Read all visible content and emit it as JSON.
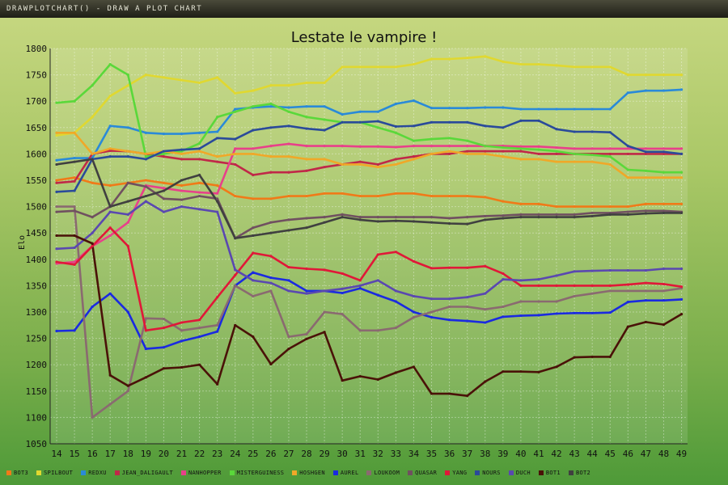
{
  "window": {
    "title": "drawPlotChart() - Draw a plot chart"
  },
  "chart_data": {
    "type": "line",
    "title": "Lestate le vampire !",
    "ylabel": "Elo",
    "xlabel": "",
    "ylim": [
      1050,
      1800
    ],
    "yticks": [
      1050,
      1100,
      1150,
      1200,
      1250,
      1300,
      1350,
      1400,
      1450,
      1500,
      1550,
      1600,
      1650,
      1700,
      1750,
      1800
    ],
    "x": [
      14,
      15,
      16,
      17,
      18,
      19,
      20,
      21,
      22,
      23,
      24,
      25,
      26,
      27,
      28,
      29,
      30,
      31,
      32,
      33,
      34,
      35,
      36,
      37,
      38,
      39,
      40,
      41,
      42,
      43,
      44,
      45,
      46,
      47,
      48,
      49
    ],
    "grid": true,
    "legend_position": "bottom",
    "series": [
      {
        "name": "BOT3",
        "color": "#f07a18",
        "values": [
          1550,
          1555,
          1545,
          1540,
          1545,
          1550,
          1545,
          1540,
          1545,
          1540,
          1520,
          1515,
          1515,
          1520,
          1520,
          1525,
          1525,
          1520,
          1520,
          1525,
          1525,
          1520,
          1520,
          1520,
          1518,
          1510,
          1505,
          1505,
          1500,
          1500,
          1500,
          1500,
          1500,
          1505,
          1505,
          1505
        ]
      },
      {
        "name": "SPILBOUT",
        "color": "#e0d830",
        "values": [
          1635,
          1640,
          1670,
          1710,
          1730,
          1750,
          1745,
          1740,
          1735,
          1745,
          1715,
          1720,
          1730,
          1730,
          1735,
          1735,
          1765,
          1765,
          1765,
          1765,
          1770,
          1780,
          1780,
          1782,
          1785,
          1775,
          1770,
          1770,
          1768,
          1765,
          1765,
          1765,
          1750,
          1750,
          1750,
          1750
        ]
      },
      {
        "name": "REDXU",
        "color": "#2a8ad8",
        "values": [
          1588,
          1592,
          1592,
          1653,
          1650,
          1640,
          1638,
          1638,
          1640,
          1642,
          1685,
          1688,
          1690,
          1688,
          1690,
          1690,
          1675,
          1680,
          1680,
          1695,
          1701,
          1687,
          1687,
          1687,
          1688,
          1688,
          1685,
          1685,
          1685,
          1685,
          1685,
          1685,
          1716,
          1720,
          1720,
          1722
        ]
      },
      {
        "name": "JEAN_DALIGAULT",
        "color": "#c02848",
        "values": [
          1545,
          1548,
          1600,
          1606,
          1605,
          1600,
          1595,
          1590,
          1590,
          1585,
          1580,
          1560,
          1565,
          1565,
          1568,
          1575,
          1580,
          1585,
          1580,
          1590,
          1595,
          1600,
          1600,
          1605,
          1605,
          1605,
          1605,
          1600,
          1600,
          1600,
          1600,
          1600,
          1600,
          1600,
          1600,
          1600
        ]
      },
      {
        "name": "NANHOPPER",
        "color": "#e8408a",
        "values": [
          1392,
          1395,
          1425,
          1445,
          1470,
          1540,
          1535,
          1530,
          1527,
          1525,
          1610,
          1610,
          1615,
          1619,
          1615,
          1615,
          1615,
          1614,
          1614,
          1613,
          1615,
          1615,
          1615,
          1615,
          1615,
          1615,
          1614,
          1614,
          1612,
          1610,
          1610,
          1610,
          1610,
          1610,
          1610,
          1610
        ]
      },
      {
        "name": "MISTERGUINESS",
        "color": "#5ad83a",
        "values": [
          1697,
          1700,
          1730,
          1770,
          1750,
          1595,
          1600,
          1605,
          1620,
          1670,
          1680,
          1690,
          1695,
          1680,
          1670,
          1665,
          1660,
          1660,
          1650,
          1640,
          1625,
          1628,
          1630,
          1625,
          1615,
          1612,
          1610,
          1608,
          1605,
          1600,
          1598,
          1595,
          1570,
          1568,
          1565,
          1565
        ]
      },
      {
        "name": "HOSHGEN",
        "color": "#f0a828",
        "values": [
          1640,
          1640,
          1600,
          1610,
          1605,
          1600,
          1605,
          1600,
          1605,
          1595,
          1600,
          1600,
          1595,
          1595,
          1590,
          1590,
          1580,
          1580,
          1575,
          1580,
          1590,
          1600,
          1605,
          1600,
          1600,
          1595,
          1590,
          1590,
          1585,
          1585,
          1585,
          1580,
          1555,
          1555,
          1555,
          1555
        ]
      },
      {
        "name": "AUREL",
        "color": "#1a2ae0",
        "values": [
          1264,
          1265,
          1310,
          1335,
          1300,
          1230,
          1233,
          1245,
          1253,
          1263,
          1350,
          1375,
          1365,
          1360,
          1340,
          1340,
          1336,
          1345,
          1332,
          1320,
          1300,
          1290,
          1285,
          1283,
          1280,
          1291,
          1293,
          1294,
          1297,
          1298,
          1298,
          1299,
          1319,
          1322,
          1322,
          1324
        ]
      },
      {
        "name": "LOUKOOM",
        "color": "#8a6a70",
        "values": [
          1500,
          1500,
          1100,
          1125,
          1150,
          1288,
          1287,
          1265,
          1270,
          1275,
          1350,
          1330,
          1340,
          1253,
          1258,
          1300,
          1296,
          1265,
          1265,
          1270,
          1290,
          1300,
          1310,
          1310,
          1305,
          1310,
          1320,
          1320,
          1320,
          1330,
          1335,
          1340,
          1340,
          1340,
          1340,
          1345
        ]
      },
      {
        "name": "QUASAR",
        "color": "#705060",
        "values": [
          1490,
          1492,
          1480,
          1500,
          1545,
          1538,
          1515,
          1513,
          1520,
          1515,
          1440,
          1460,
          1470,
          1475,
          1478,
          1480,
          1485,
          1480,
          1480,
          1480,
          1480,
          1480,
          1478,
          1480,
          1482,
          1483,
          1485,
          1485,
          1485,
          1485,
          1488,
          1488,
          1490,
          1492,
          1492,
          1490
        ]
      },
      {
        "name": "YANG",
        "color": "#e01838",
        "values": [
          1395,
          1390,
          1425,
          1460,
          1425,
          1265,
          1270,
          1280,
          1285,
          1328,
          1370,
          1412,
          1406,
          1385,
          1382,
          1380,
          1373,
          1360,
          1409,
          1414,
          1396,
          1383,
          1384,
          1384,
          1387,
          1373,
          1350,
          1350,
          1350,
          1350,
          1350,
          1350,
          1352,
          1355,
          1353,
          1348
        ]
      },
      {
        "name": "NOURS",
        "color": "#2a4a9a",
        "values": [
          1528,
          1530,
          1590,
          1595,
          1595,
          1590,
          1605,
          1608,
          1610,
          1630,
          1628,
          1645,
          1650,
          1653,
          1648,
          1645,
          1660,
          1660,
          1662,
          1652,
          1653,
          1660,
          1660,
          1660,
          1653,
          1650,
          1663,
          1663,
          1647,
          1642,
          1642,
          1641,
          1615,
          1604,
          1604,
          1600
        ]
      },
      {
        "name": "DUCH",
        "color": "#5a48b0",
        "values": [
          1420,
          1422,
          1450,
          1490,
          1485,
          1510,
          1490,
          1500,
          1495,
          1490,
          1380,
          1360,
          1355,
          1340,
          1335,
          1340,
          1344,
          1350,
          1360,
          1340,
          1330,
          1325,
          1325,
          1328,
          1335,
          1362,
          1360,
          1362,
          1369,
          1377,
          1378,
          1379,
          1379,
          1379,
          1382,
          1382
        ]
      },
      {
        "name": "BOT1",
        "color": "#4a1208",
        "values": [
          1445,
          1445,
          1430,
          1180,
          1160,
          1176,
          1193,
          1195,
          1200,
          1163,
          1275,
          1253,
          1201,
          1230,
          1249,
          1262,
          1170,
          1178,
          1172,
          1185,
          1196,
          1145,
          1145,
          1141,
          1168,
          1187,
          1187,
          1186,
          1196,
          1214,
          1215,
          1215,
          1272,
          1281,
          1276,
          1296
        ]
      },
      {
        "name": "BOT2",
        "color": "#404040",
        "values": [
          1580,
          1585,
          1590,
          1500,
          1510,
          1520,
          1530,
          1550,
          1560,
          1510,
          1440,
          1445,
          1450,
          1455,
          1460,
          1470,
          1480,
          1475,
          1472,
          1473,
          1472,
          1470,
          1468,
          1467,
          1475,
          1478,
          1480,
          1480,
          1480,
          1480,
          1482,
          1485,
          1485,
          1487,
          1488,
          1488
        ]
      }
    ]
  }
}
